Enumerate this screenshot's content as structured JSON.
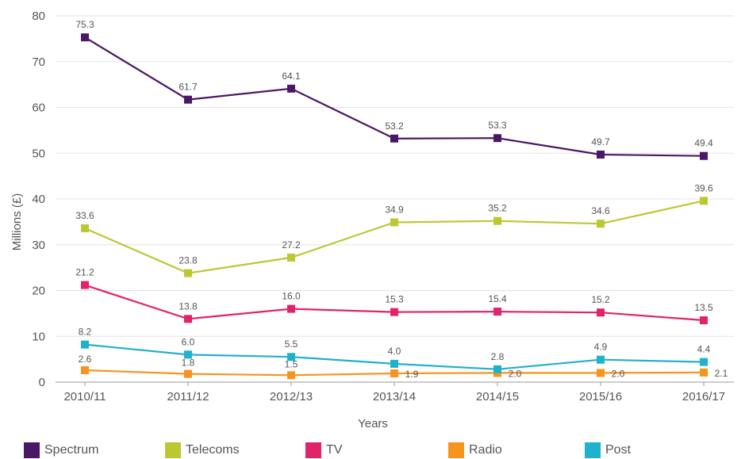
{
  "chart_data": {
    "type": "line",
    "xlabel": "Years",
    "ylabel": "Millions (£)",
    "categories": [
      "2010/11",
      "2011/12",
      "2012/13",
      "2013/14",
      "2014/15",
      "2015/16",
      "2016/17"
    ],
    "ylim": [
      0,
      80
    ],
    "yticks": [
      0,
      10,
      20,
      30,
      40,
      50,
      60,
      70,
      80
    ],
    "grid": "horizontal",
    "legend_position": "bottom",
    "series": [
      {
        "name": "Spectrum",
        "color": "#4b1767",
        "values": [
          75.3,
          61.7,
          64.1,
          53.2,
          53.3,
          49.7,
          49.4
        ],
        "labels": [
          "75.3",
          "61.7",
          "64.1",
          "53.2",
          "53.3",
          "49.7",
          "49.4"
        ]
      },
      {
        "name": "Telecoms",
        "color": "#bcc832",
        "values": [
          33.6,
          23.8,
          27.2,
          34.9,
          35.2,
          34.6,
          39.6
        ],
        "labels": [
          "33.6",
          "23.8",
          "27.2",
          "34.9",
          "35.2",
          "34.6",
          "39.6"
        ]
      },
      {
        "name": "TV",
        "color": "#e0236a",
        "values": [
          21.2,
          13.8,
          16.0,
          15.3,
          15.4,
          15.2,
          13.5
        ],
        "labels": [
          "21.2",
          "13.8",
          "16.0",
          "15.3",
          "15.4",
          "15.2",
          "13.5"
        ]
      },
      {
        "name": "Radio",
        "color": "#f7941d",
        "values": [
          2.6,
          1.8,
          1.5,
          1.9,
          2.0,
          2.0,
          2.1
        ],
        "labels": [
          "2.6",
          "1.8",
          "1.5",
          "1.9",
          "2.0",
          "2.0",
          "2.1"
        ]
      },
      {
        "name": "Post",
        "color": "#20b1cc",
        "values": [
          8.2,
          6.0,
          5.5,
          4.0,
          2.8,
          4.9,
          4.4
        ],
        "labels": [
          "8.2",
          "6.0",
          "5.5",
          "4.0",
          "2.8",
          "4.9",
          "4.4"
        ]
      }
    ]
  }
}
